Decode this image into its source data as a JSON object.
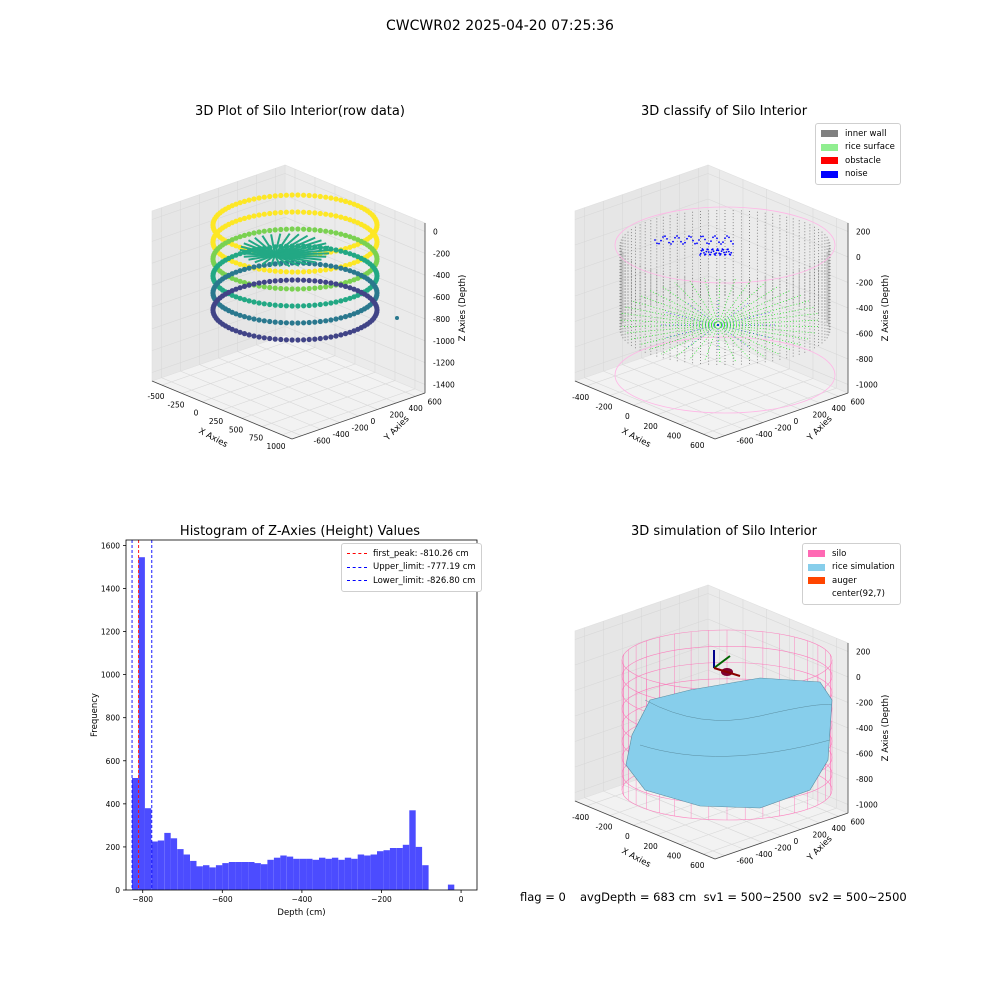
{
  "suptitle": "CWCWR02 2025-04-20 07:25:36",
  "chart_data": [
    {
      "type": "scatter",
      "title": "3D Plot of Silo Interior(row data)",
      "xlabel": "X Axies",
      "ylabel": "Y Axies",
      "zlabel": "Z Axies (Depth)",
      "xticks": [
        "-500",
        "-250",
        "0",
        "250",
        "500",
        "750",
        "1000"
      ],
      "yticks": [
        "-600",
        "-400",
        "-200",
        "0",
        "200",
        "400",
        "600"
      ],
      "zticks": [
        "0",
        "-200",
        "-400",
        "-600",
        "-800",
        "-1000",
        "-1200",
        "-1400"
      ],
      "colormap": [
        "#fde725",
        "#7ad151",
        "#22a884",
        "#2a788e",
        "#414487"
      ]
    },
    {
      "type": "scatter",
      "title": "3D classify of Silo Interior",
      "xlabel": "X Axies",
      "ylabel": "Y Axies",
      "zlabel": "Z Axies (Depth)",
      "xticks": [
        "-400",
        "-200",
        "0",
        "200",
        "400",
        "600"
      ],
      "yticks": [
        "-600",
        "-400",
        "-200",
        "0",
        "200",
        "400",
        "600"
      ],
      "zticks": [
        "200",
        "0",
        "-200",
        "-400",
        "-600",
        "-800",
        "-1000"
      ],
      "legend": [
        {
          "label": "inner wall",
          "color": "#808080"
        },
        {
          "label": "rice surface",
          "color": "#90ee90"
        },
        {
          "label": "obstacle",
          "color": "#ff0000"
        },
        {
          "label": "noise",
          "color": "#0000ff"
        }
      ],
      "legend_position": "top-right"
    },
    {
      "type": "bar",
      "title": "Histogram of Z-Axies (Height) Values",
      "xlabel": "Depth (cm)",
      "ylabel": "Frequency",
      "xlim": [
        -842,
        40
      ],
      "ylim": [
        0,
        1625
      ],
      "xticks": [
        -800,
        -600,
        -400,
        -200,
        0
      ],
      "yticks": [
        0,
        200,
        400,
        600,
        800,
        1000,
        1200,
        1400,
        1600
      ],
      "bin_start": -826.8,
      "bin_width": 16.2,
      "values": [
        520,
        1545,
        380,
        225,
        230,
        265,
        240,
        190,
        165,
        135,
        110,
        115,
        105,
        115,
        125,
        130,
        130,
        130,
        130,
        125,
        120,
        140,
        150,
        160,
        155,
        145,
        145,
        145,
        140,
        150,
        145,
        150,
        140,
        150,
        145,
        165,
        160,
        165,
        180,
        185,
        195,
        195,
        210,
        370,
        200,
        115,
        0,
        0,
        0,
        25
      ],
      "color": "#0000ff",
      "lines": [
        {
          "label": "first_peak: -810.26 cm",
          "x": -810.26,
          "color": "#ff0000"
        },
        {
          "label": "Upper_limit: -777.19 cm",
          "x": -777.19,
          "color": "#0000ff"
        },
        {
          "label": "Lower_limit: -826.80 cm",
          "x": -826.8,
          "color": "#0000ff"
        }
      ],
      "legend_position": "top-right"
    },
    {
      "type": "surface",
      "title": "3D simulation of Silo Interior",
      "xlabel": "X Axies",
      "ylabel": "Y Axies",
      "zlabel": "Z Axies (Depth)",
      "xticks": [
        "-400",
        "-200",
        "0",
        "200",
        "400",
        "600"
      ],
      "yticks": [
        "-600",
        "-400",
        "-200",
        "0",
        "200",
        "400",
        "600"
      ],
      "zticks": [
        "200",
        "0",
        "-200",
        "-400",
        "-600",
        "-800",
        "-1000"
      ],
      "legend": [
        {
          "label": "silo",
          "color": "#ff69b4"
        },
        {
          "label": "rice simulation",
          "color": "#87ceeb"
        },
        {
          "label": "auger",
          "color": "#ff4500"
        },
        {
          "label": "center(92,7)",
          "color": ""
        }
      ],
      "legend_position": "top-right"
    }
  ],
  "footer": {
    "flag": "flag = 0",
    "avg": "avgDepth = 683 cm  sv1 = 500~2500  sv2 = 500~2500"
  }
}
